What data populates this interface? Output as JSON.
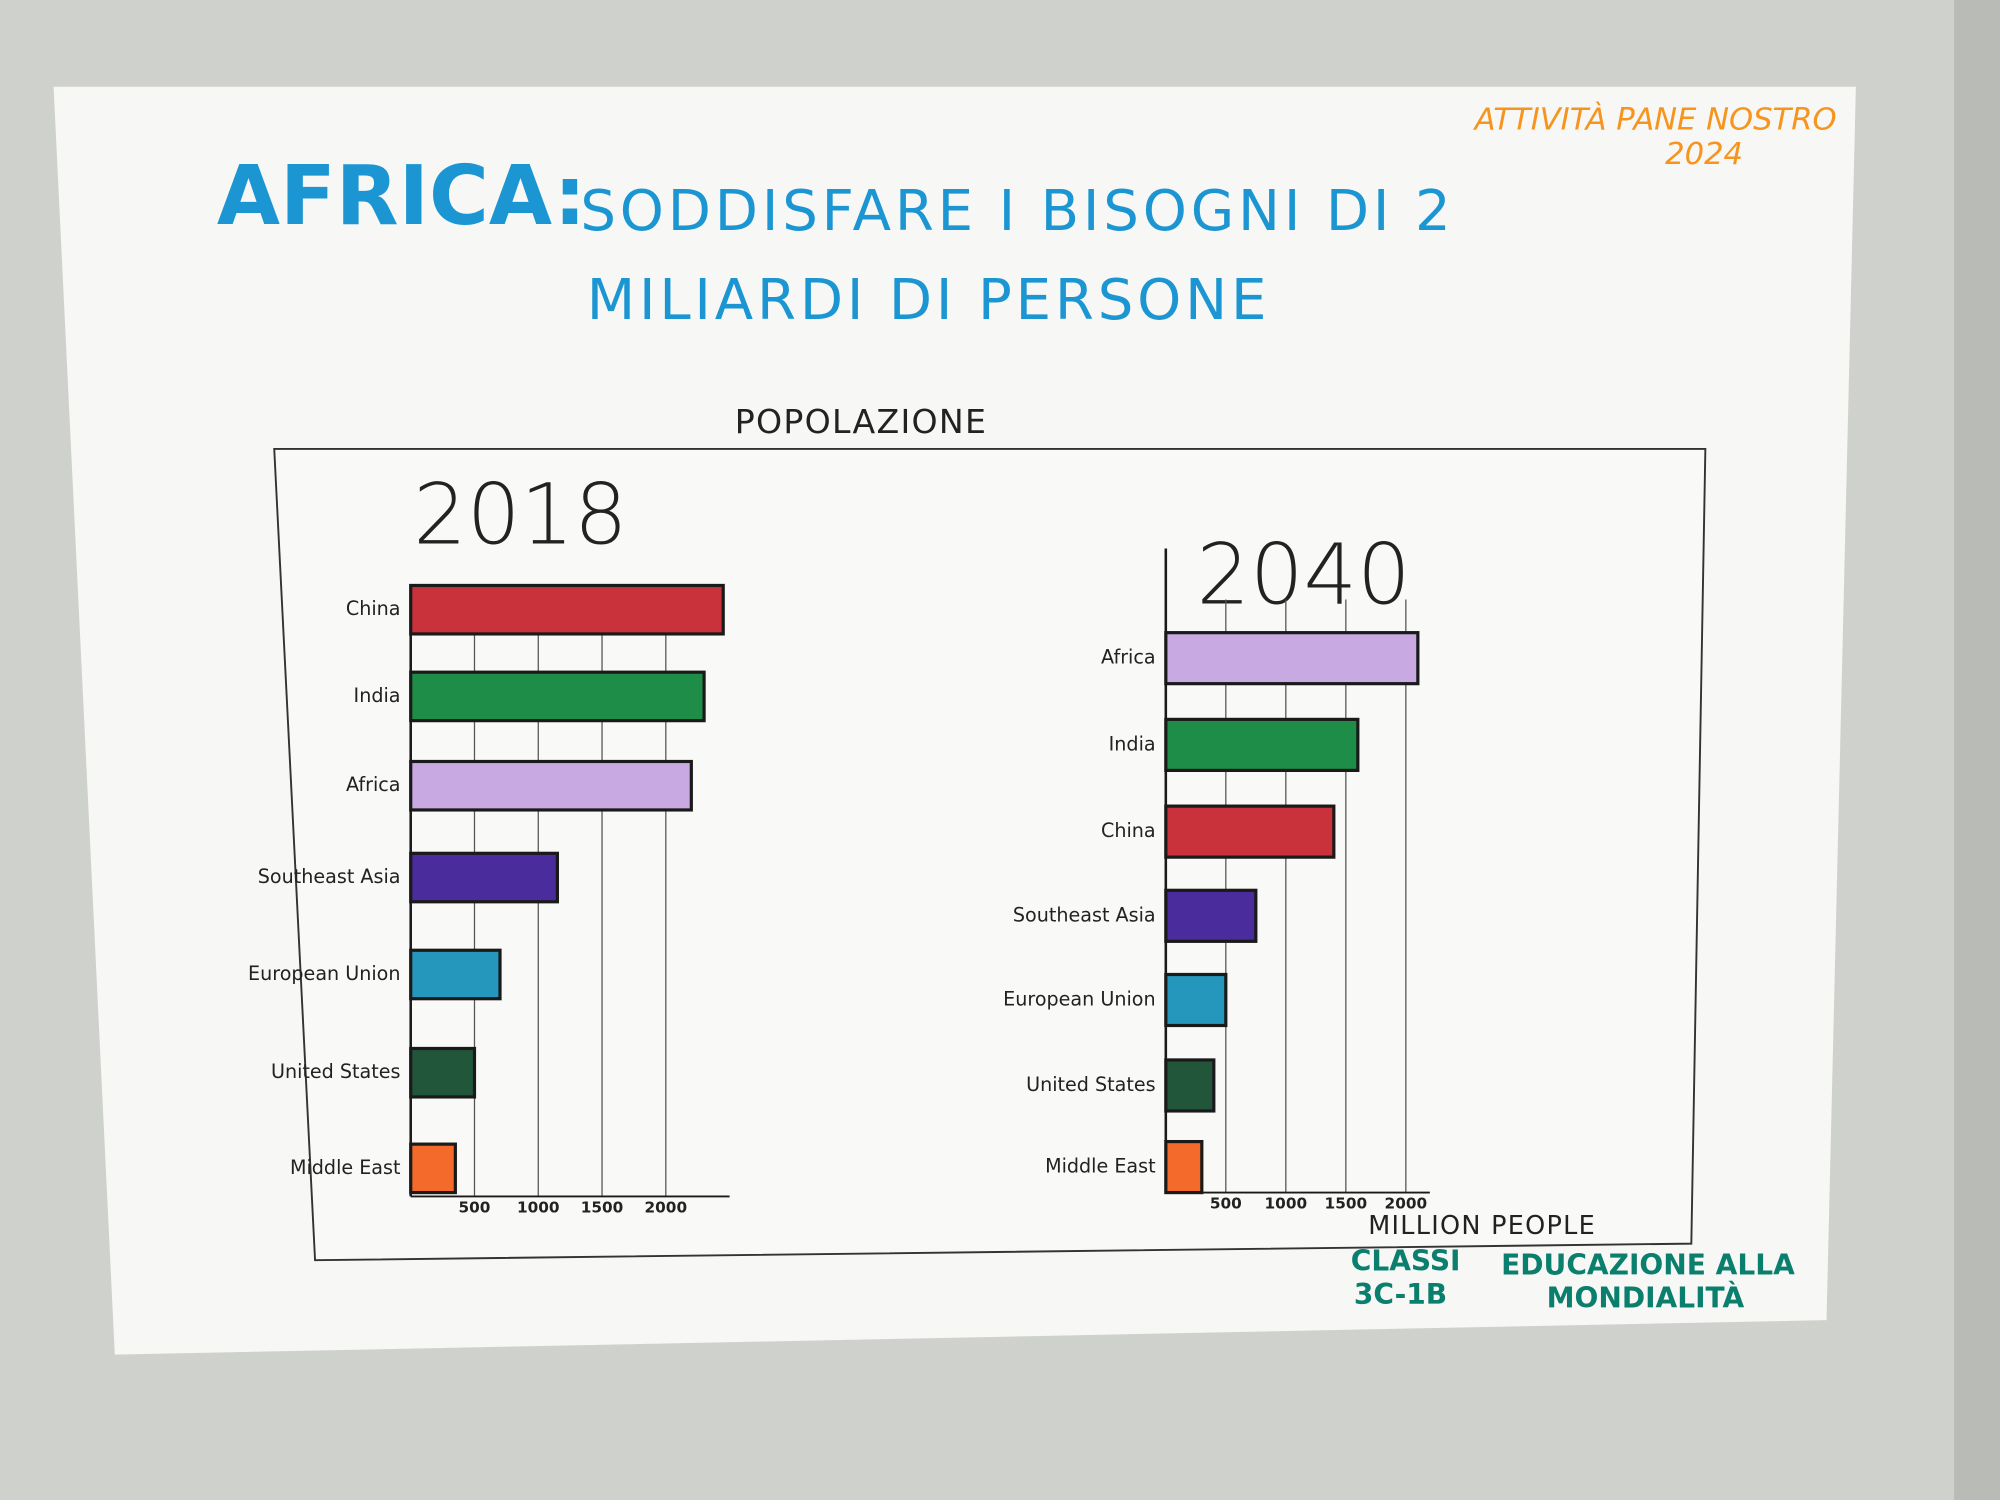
{
  "header": {
    "title_highlight": "AFRICA:",
    "title_lines": [
      "SODDISFARE I BISOGNI DI 2",
      "MILIARDI DI PERSONE"
    ],
    "activity_lines": [
      "ATTIVITÀ PANE NOSTRO",
      "2024"
    ],
    "section": "POPOLAZIONE"
  },
  "footer": {
    "classes_lines": [
      "CLASSI",
      "3C-1B"
    ],
    "subject_lines": [
      "EDUCAZIONE ALLA",
      "MONDIALITÀ"
    ]
  },
  "chart_data": [
    {
      "type": "bar",
      "orientation": "horizontal",
      "title": "2018",
      "categories": [
        "China",
        "India",
        "Africa",
        "Southeast Asia",
        "European Union",
        "United States",
        "Middle East"
      ],
      "values": [
        2450,
        2300,
        2200,
        1150,
        700,
        500,
        350
      ],
      "colors": [
        "#c9323a",
        "#1e8d47",
        "#c8a9e2",
        "#4a2c9c",
        "#2597bd",
        "#22563a",
        "#f36a2b"
      ],
      "xlim": [
        0,
        2500
      ],
      "xticks": [
        500,
        1000,
        1500,
        2000
      ],
      "grid": true
    },
    {
      "type": "bar",
      "orientation": "horizontal",
      "title": "2040",
      "categories": [
        "Africa",
        "India",
        "China",
        "Southeast Asia",
        "European Union",
        "United States",
        "Middle East"
      ],
      "values": [
        2100,
        1600,
        1400,
        750,
        500,
        400,
        300
      ],
      "colors": [
        "#c8a9e2",
        "#1e8d47",
        "#c9323a",
        "#4a2c9c",
        "#2597bd",
        "#22563a",
        "#f36a2b"
      ],
      "xlim": [
        0,
        2200
      ],
      "xticks": [
        500,
        1000,
        1500,
        2000
      ],
      "x_label": "MILLION PEOPLE",
      "grid": true
    }
  ]
}
